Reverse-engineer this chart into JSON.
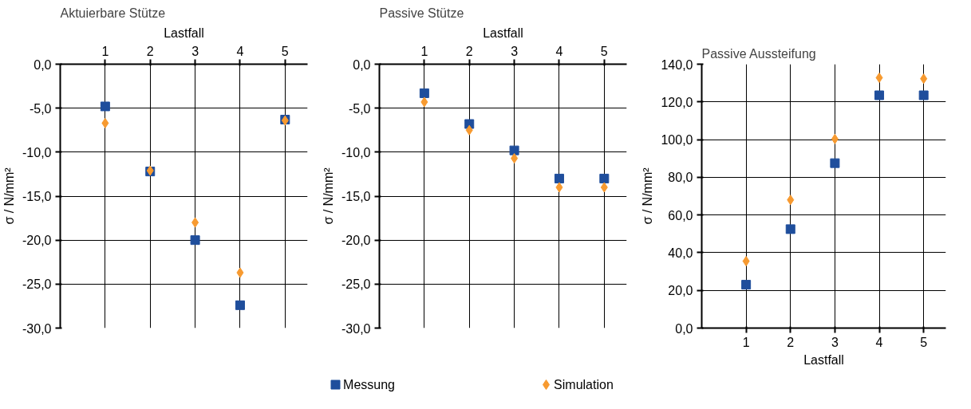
{
  "chart_data": [
    {
      "type": "scatter",
      "title": "Aktuierbare Stütze",
      "xlabel": "Lastfall",
      "ylabel": "σ / N/mm²",
      "xlim": [
        0,
        5.5
      ],
      "xticks": [
        1,
        2,
        3,
        4,
        5
      ],
      "ylim": [
        -30,
        0
      ],
      "yticks": [
        {
          "value": 0,
          "label": "0,0"
        },
        {
          "value": -5,
          "label": "-5,0"
        },
        {
          "value": -10,
          "label": "-10,0"
        },
        {
          "value": -15,
          "label": "-15,0"
        },
        {
          "value": -20,
          "label": "-20,0"
        },
        {
          "value": -25,
          "label": "-25,0"
        },
        {
          "value": -30,
          "label": "-30,0"
        }
      ],
      "grid": true,
      "x": [
        1,
        2,
        3,
        4,
        5
      ],
      "series": [
        {
          "color": "#1f4e9c",
          "marker": "square",
          "values": [
            -4.8,
            -12.2,
            -20.0,
            -27.4,
            -6.3
          ]
        },
        {
          "color": "#f79a30",
          "marker": "diamond",
          "values": [
            -6.7,
            -12.1,
            -18.0,
            -23.7,
            -6.4
          ]
        }
      ]
    },
    {
      "type": "scatter",
      "title": "Passive Stütze",
      "xlabel": "Lastfall",
      "ylabel": "σ / N/mm²",
      "xlim": [
        0,
        5.5
      ],
      "xticks": [
        1,
        2,
        3,
        4,
        5
      ],
      "ylim": [
        -30,
        0
      ],
      "yticks": [
        {
          "value": 0,
          "label": "0,0"
        },
        {
          "value": -5,
          "label": "-5,0"
        },
        {
          "value": -10,
          "label": "-10,0"
        },
        {
          "value": -15,
          "label": "-15,0"
        },
        {
          "value": -20,
          "label": "-20,0"
        },
        {
          "value": -25,
          "label": "-25,0"
        },
        {
          "value": -30,
          "label": "-30,0"
        }
      ],
      "grid": true,
      "legend": "bottom",
      "x": [
        1,
        2,
        3,
        4,
        5
      ],
      "series": [
        {
          "name": "Messung",
          "color": "#1f4e9c",
          "marker": "square",
          "values": [
            -3.3,
            -6.8,
            -9.8,
            -13.0,
            -13.0
          ]
        },
        {
          "name": "Simulation",
          "color": "#f79a30",
          "marker": "diamond",
          "values": [
            -4.3,
            -7.5,
            -10.7,
            -14.0,
            -14.0
          ]
        }
      ]
    },
    {
      "type": "scatter",
      "title": "Passive Aussteifung",
      "xlabel": "Lastfall",
      "ylabel": "σ / N/mm²",
      "xlim": [
        0,
        5.5
      ],
      "xticks": [
        1,
        2,
        3,
        4,
        5
      ],
      "ylim": [
        0,
        140
      ],
      "yticks": [
        {
          "value": 0,
          "label": "0,0"
        },
        {
          "value": 20,
          "label": "20,0"
        },
        {
          "value": 40,
          "label": "40,0"
        },
        {
          "value": 60,
          "label": "60,0"
        },
        {
          "value": 80,
          "label": "80,0"
        },
        {
          "value": 100,
          "label": "100,0"
        },
        {
          "value": 120,
          "label": "120,0"
        },
        {
          "value": 140,
          "label": "140,0"
        }
      ],
      "grid": true,
      "x": [
        1,
        2,
        3,
        4,
        5
      ],
      "series": [
        {
          "color": "#1f4e9c",
          "marker": "square",
          "values": [
            23,
            52.5,
            87.5,
            123.5,
            123.5
          ]
        },
        {
          "color": "#f79a30",
          "marker": "diamond",
          "values": [
            35.5,
            68,
            100.3,
            132.8,
            132.3
          ]
        }
      ]
    }
  ]
}
